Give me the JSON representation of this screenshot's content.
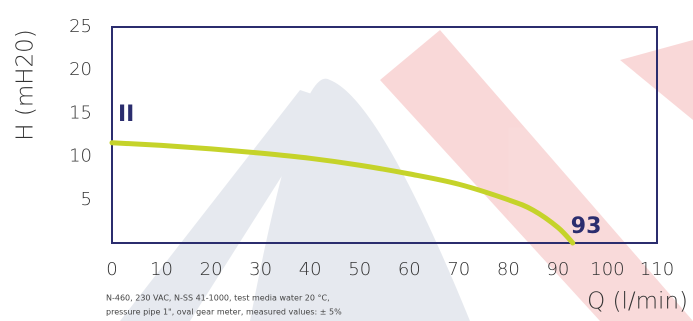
{
  "chart_data": {
    "type": "line",
    "ylabel": "H (mH20)",
    "xlabel": "Q (l/min)",
    "xlim": [
      0,
      110
    ],
    "xticks": [
      0,
      10,
      20,
      30,
      40,
      50,
      60,
      70,
      80,
      90,
      100,
      110
    ],
    "ylim": [
      0,
      25
    ],
    "yticks": [
      5,
      10,
      15,
      20,
      25
    ],
    "series": [
      {
        "color": "#c5d32a",
        "x": [
          0,
          10,
          20,
          30,
          40,
          50,
          60,
          70,
          80,
          85,
          90,
          93
        ],
        "values": [
          11.6,
          11.3,
          10.9,
          10.4,
          9.8,
          9.0,
          8.0,
          6.8,
          5.0,
          3.8,
          1.8,
          0
        ]
      }
    ],
    "annotations": [
      "II",
      "93"
    ],
    "footnote": [
      "N-460, 230 VAC, N-SS 41-1000, test media water 20 °C,",
      "pressure pipe 1\", oval gear meter, measured values: ± 5%"
    ]
  }
}
